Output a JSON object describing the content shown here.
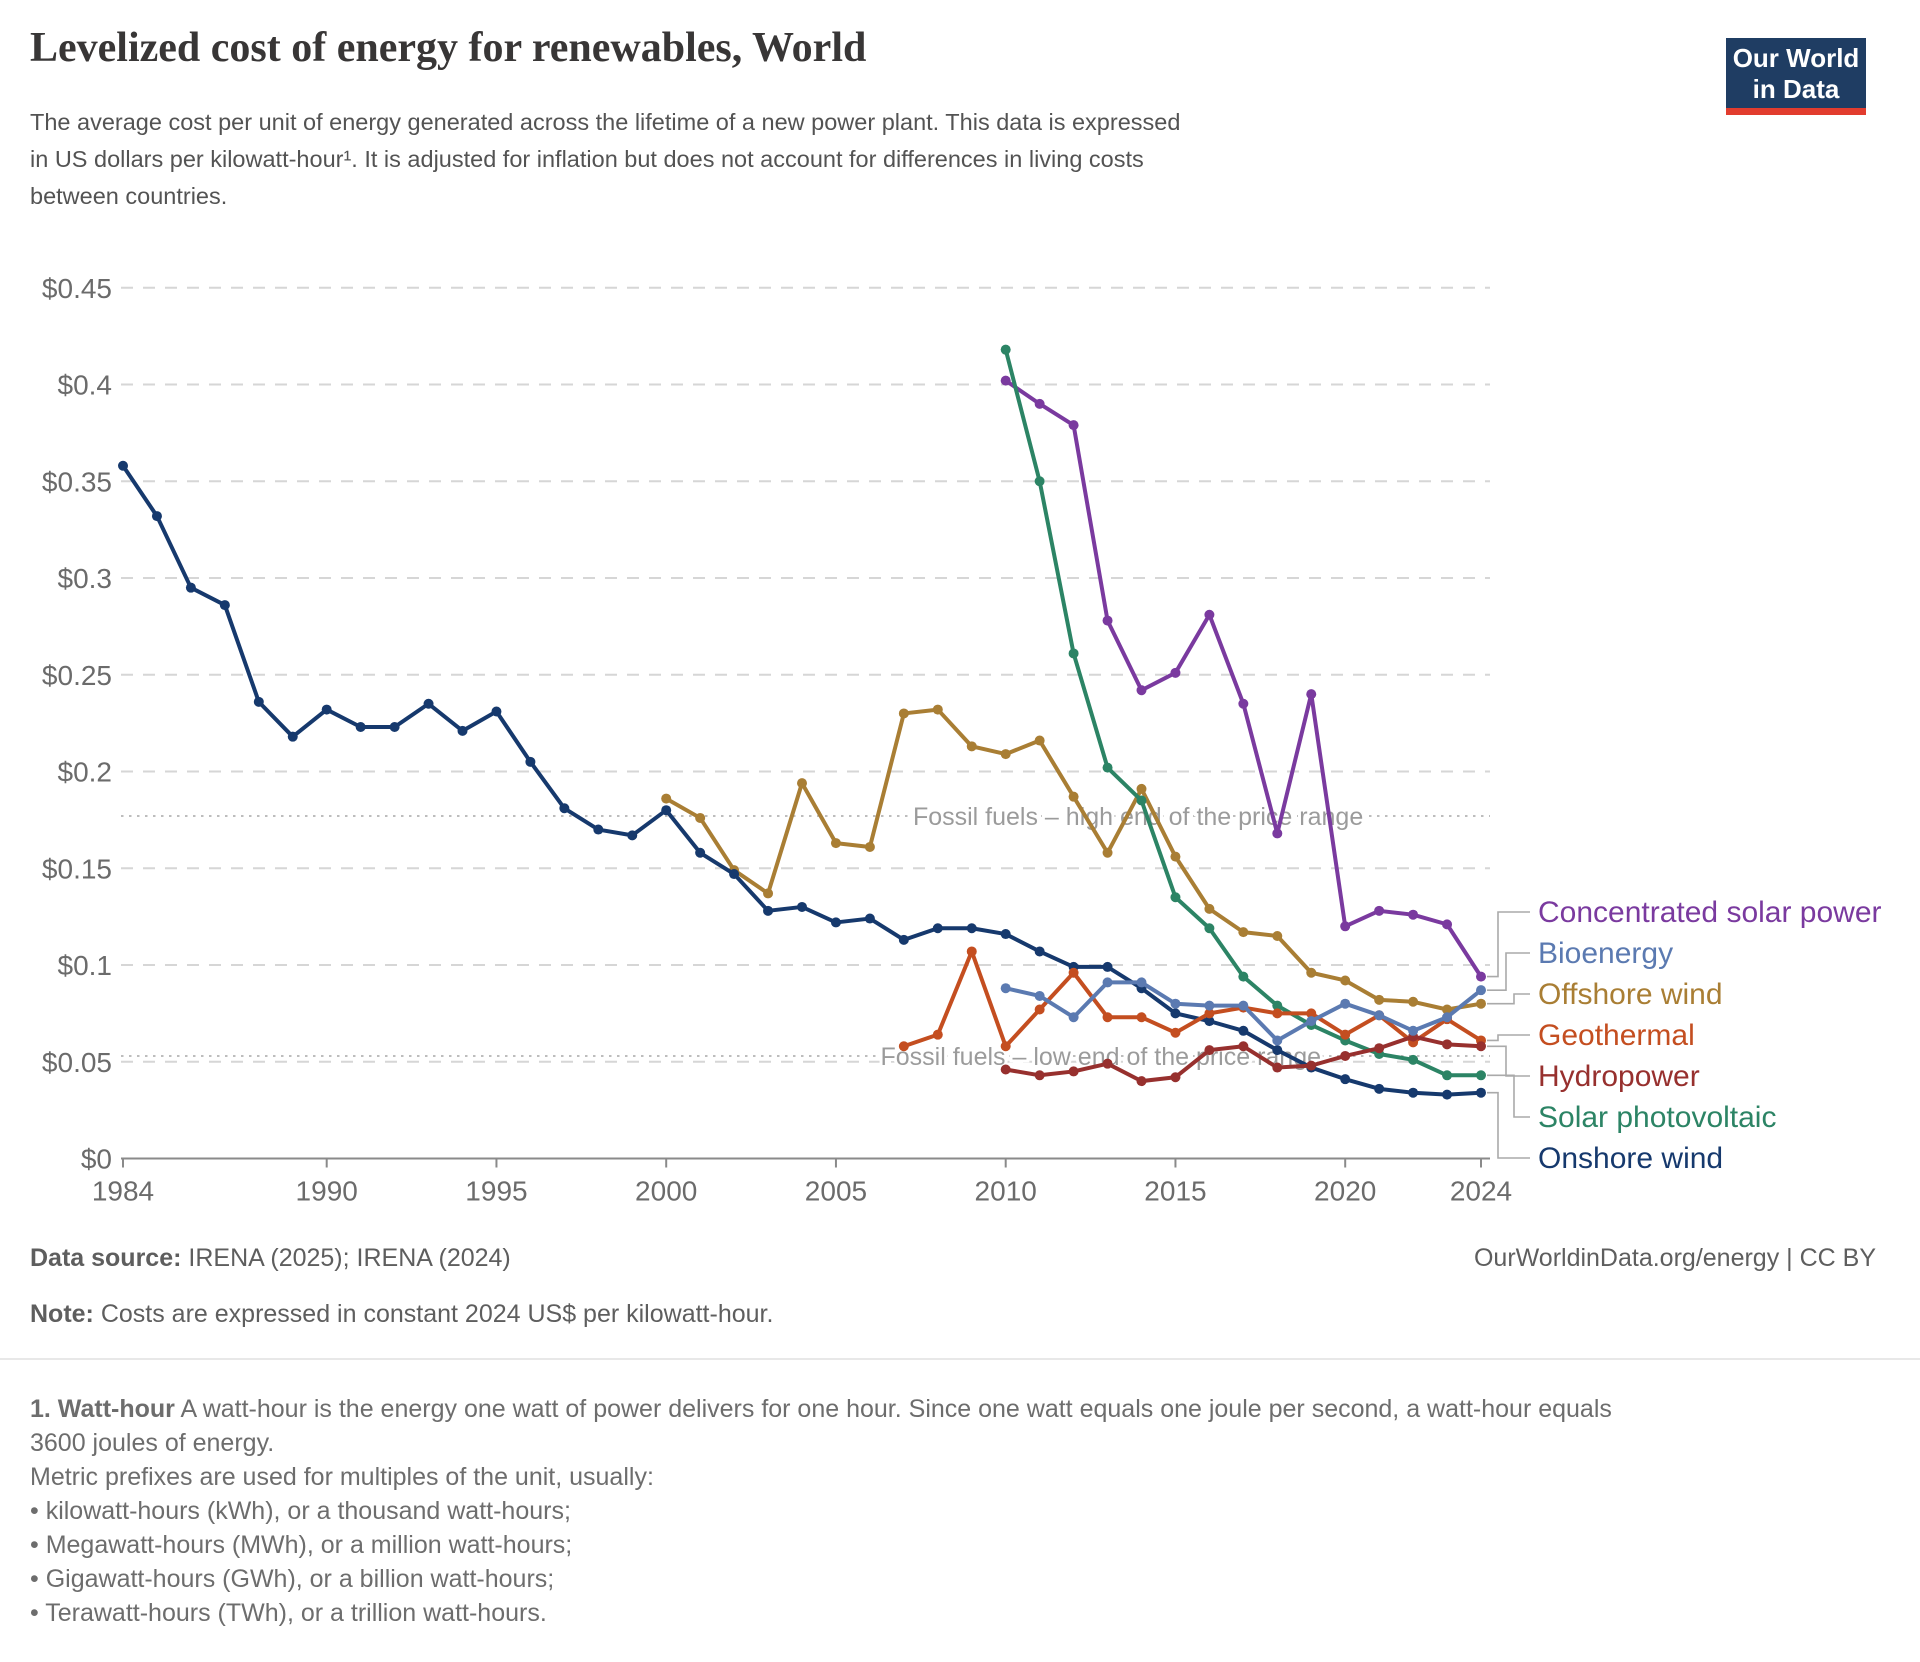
{
  "header": {
    "title": "Levelized cost of energy for renewables, World",
    "subtitle_lines": [
      "The average cost per unit of energy generated across the lifetime of a new power plant. This data is expressed",
      "in US dollars per kilowatt-hour¹. It is adjusted for inflation but does not account for differences in living costs",
      "between countries."
    ]
  },
  "logo": {
    "line1": "Our World",
    "line2": "in Data",
    "bg_color": "#1f3d63",
    "accent_color": "#e23c2e"
  },
  "chart_data": {
    "type": "line",
    "title": "Levelized cost of energy for renewables, World",
    "ylabel": "US dollars per kilowatt-hour",
    "ylim": [
      0,
      0.45
    ],
    "grid": true,
    "yticks": [
      {
        "v": 0,
        "label": "$0"
      },
      {
        "v": 0.05,
        "label": "$0.05"
      },
      {
        "v": 0.1,
        "label": "$0.1"
      },
      {
        "v": 0.15,
        "label": "$0.15"
      },
      {
        "v": 0.2,
        "label": "$0.2"
      },
      {
        "v": 0.25,
        "label": "$0.25"
      },
      {
        "v": 0.3,
        "label": "$0.3"
      },
      {
        "v": 0.35,
        "label": "$0.35"
      },
      {
        "v": 0.4,
        "label": "$0.4"
      },
      {
        "v": 0.45,
        "label": "$0.45"
      }
    ],
    "xticks": [
      1984,
      1990,
      1995,
      2000,
      2005,
      2010,
      2015,
      2020,
      2024
    ],
    "reference_lines": [
      {
        "label": "Fossil fuels – high end of the price range",
        "value": 0.177,
        "label_center_year": 2013.9
      },
      {
        "label": "Fossil fuels – low end of the price range",
        "value": 0.053,
        "label_center_year": 2012.8
      }
    ],
    "series": [
      {
        "name": "Offshore wind",
        "color": "#a97e34",
        "start_year": 2000,
        "values": [
          0.186,
          0.176,
          0.149,
          0.137,
          0.194,
          0.163,
          0.161,
          0.23,
          0.232,
          0.213,
          0.209,
          0.216,
          0.187,
          0.158,
          0.191,
          0.156,
          0.129,
          0.117,
          0.115,
          0.096,
          0.092,
          0.082,
          0.081,
          0.077,
          0.08
        ]
      },
      {
        "name": "Concentrated solar power",
        "color": "#7a3a9f",
        "start_year": 2010,
        "values": [
          0.402,
          0.39,
          0.379,
          0.278,
          0.242,
          0.251,
          0.281,
          0.235,
          0.168,
          0.24,
          0.12,
          0.128,
          0.126,
          0.121,
          0.094
        ]
      },
      {
        "name": "Solar photovoltaic",
        "color": "#2c8465",
        "start_year": 2010,
        "values": [
          0.418,
          0.35,
          0.261,
          0.202,
          0.185,
          0.135,
          0.119,
          0.094,
          0.079,
          0.069,
          0.061,
          0.054,
          0.051,
          0.043,
          0.043
        ]
      },
      {
        "name": "Onshore wind",
        "color": "#16396d",
        "start_year": 1984,
        "values": [
          0.358,
          0.332,
          0.295,
          0.286,
          0.236,
          0.218,
          0.232,
          0.223,
          0.223,
          0.235,
          0.221,
          0.231,
          0.205,
          0.181,
          0.17,
          0.167,
          0.18,
          0.158,
          0.147,
          0.128,
          0.13,
          0.122,
          0.124,
          0.113,
          0.119,
          0.119,
          0.116,
          0.107,
          0.099,
          0.099,
          0.088,
          0.075,
          0.071,
          0.066,
          0.056,
          0.047,
          0.041,
          0.036,
          0.034,
          0.033,
          0.034
        ]
      },
      {
        "name": "Geothermal",
        "color": "#c44e20",
        "start_year": 2007,
        "values": [
          0.058,
          0.064,
          0.107,
          0.058,
          0.077,
          0.096,
          0.073,
          0.073,
          0.065,
          0.075,
          0.078,
          0.075,
          0.075,
          0.064,
          0.074,
          0.06,
          0.072,
          0.061
        ]
      },
      {
        "name": "Hydropower",
        "color": "#97302e",
        "start_year": 2010,
        "values": [
          0.046,
          0.043,
          0.045,
          0.049,
          0.04,
          0.042,
          0.056,
          0.058,
          0.047,
          0.048,
          0.053,
          0.057,
          0.063,
          0.059,
          0.058
        ]
      },
      {
        "name": "Bioenergy",
        "color": "#5b7ab1",
        "start_year": 2010,
        "values": [
          0.088,
          0.084,
          0.073,
          0.091,
          0.091,
          0.08,
          0.079,
          0.079,
          0.061,
          0.071,
          0.08,
          0.074,
          0.066,
          0.073,
          0.087
        ]
      }
    ],
    "legend_order": [
      "Concentrated solar power",
      "Bioenergy",
      "Offshore wind",
      "Geothermal",
      "Hydropower",
      "Solar photovoltaic",
      "Onshore wind"
    ],
    "legend_position": "right"
  },
  "footer": {
    "data_source_label": "Data source:",
    "data_source_value": " IRENA (2025); IRENA (2024)",
    "attribution": "OurWorldinData.org/energy | CC BY",
    "note_label": "Note:",
    "note_value": " Costs are expressed in constant 2024 US$ per kilowatt-hour."
  },
  "footnote": {
    "heading": "1. Watt-hour",
    "line1_rest": " A watt-hour is the energy one watt of power delivers for one hour. Since one watt equals one joule per second, a watt-hour equals",
    "line2": "3600 joules of energy.",
    "line3": "Metric prefixes are used for multiples of the unit, usually:",
    "bullets": [
      "kilowatt-hours (kWh), or a thousand watt-hours;",
      "Megawatt-hours (MWh), or a million watt-hours;",
      "Gigawatt-hours (GWh), or a billion watt-hours;",
      "Terawatt-hours (TWh), or a trillion watt-hours."
    ]
  }
}
